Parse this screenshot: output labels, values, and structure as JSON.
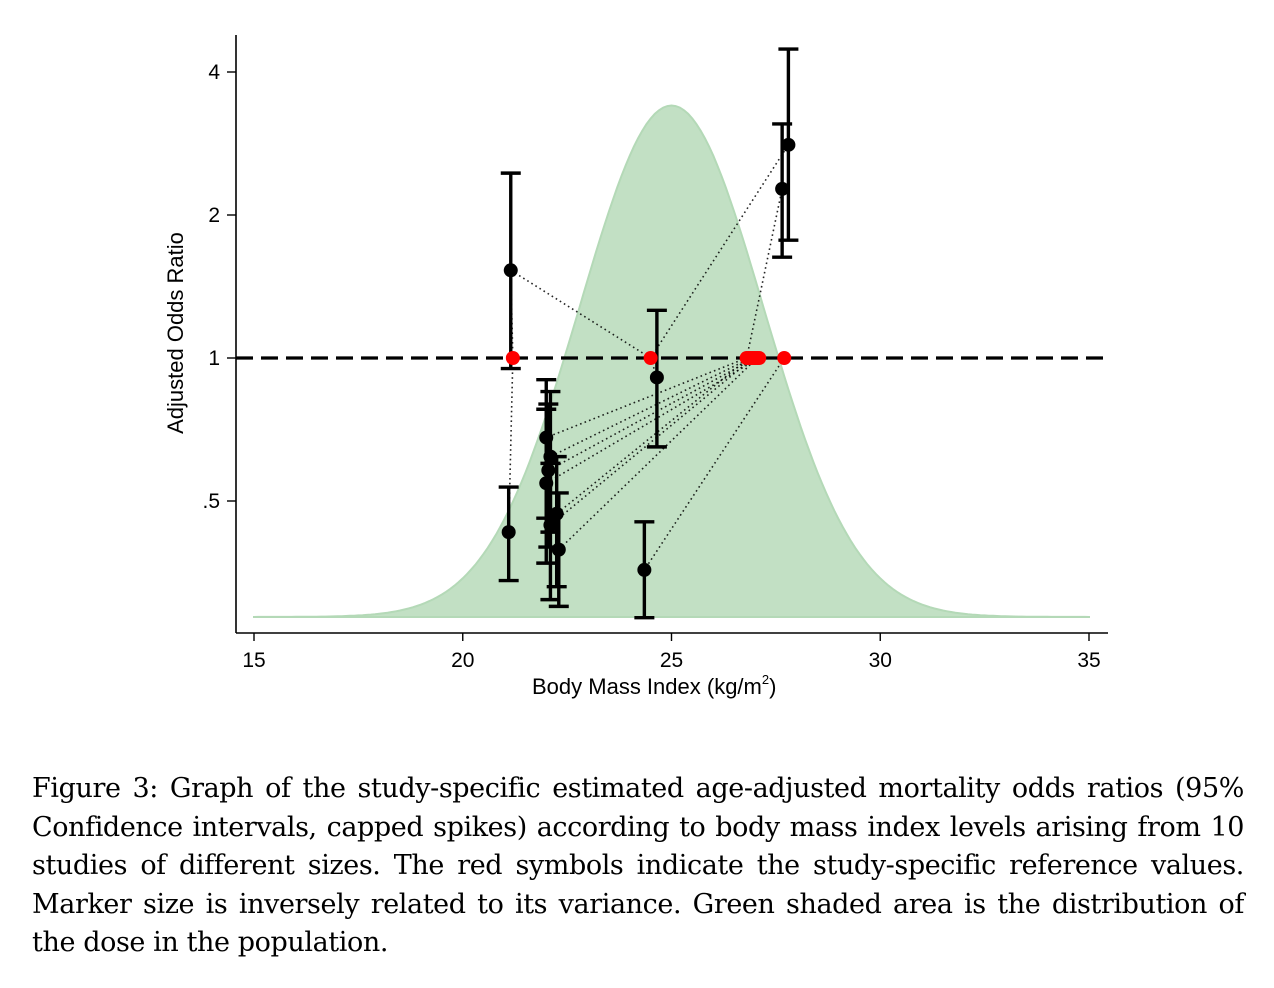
{
  "chart_data": {
    "type": "scatter",
    "title": "",
    "xlabel": "Body Mass Index (kg/m",
    "xlabel_superscript": "2",
    "xlabel_suffix": ")",
    "ylabel": "Adjusted Odds Ratio",
    "xlim": [
      15,
      35
    ],
    "ylim_log2": [
      0.27,
      4.6
    ],
    "y_scale": "log",
    "x_ticks": [
      15,
      20,
      25,
      30,
      35
    ],
    "x_tick_labels": [
      "15",
      "20",
      "25",
      "30",
      "35"
    ],
    "y_ticks": [
      4,
      2,
      1,
      0.5
    ],
    "y_tick_labels": [
      "4",
      "2",
      "1",
      ".5"
    ],
    "reference_line": {
      "y": 1,
      "style": "dashed",
      "color": "#000000"
    },
    "population_distribution": {
      "type": "normal",
      "mean": 25,
      "sd": 2.2,
      "x_range": [
        15,
        35
      ],
      "peak_or": 3.4,
      "base_or": 0.285,
      "color": "#c2e0c4"
    },
    "colors": {
      "point": "#000000",
      "reference": "#ff0000",
      "connector": "#000000"
    },
    "studies": [
      {
        "ref_x": 21.2,
        "points": [
          {
            "x": 21.15,
            "or": 1.53,
            "lo": 0.95,
            "hi": 2.45
          },
          {
            "x": 21.1,
            "or": 0.43,
            "lo": 0.34,
            "hi": 0.535
          }
        ]
      },
      {
        "ref_x": 24.5,
        "points": [
          {
            "x": 21.15,
            "or": 1.53,
            "lo": null,
            "hi": null
          },
          {
            "x": 24.65,
            "or": 0.91,
            "lo": 0.65,
            "hi": 1.26
          },
          {
            "x": 27.8,
            "or": 2.81,
            "lo": 1.77,
            "hi": 4.47
          }
        ]
      },
      {
        "ref_x": 26.8,
        "points": [
          {
            "x": 27.65,
            "or": 2.27,
            "lo": 1.63,
            "hi": 3.11
          },
          {
            "x": 22.0,
            "or": 0.68,
            "lo": 0.46,
            "hi": 0.9
          }
        ]
      },
      {
        "ref_x": 26.9,
        "points": [
          {
            "x": 22.1,
            "or": 0.62,
            "lo": 0.43,
            "hi": 0.85
          }
        ]
      },
      {
        "ref_x": 27.0,
        "points": [
          {
            "x": 22.05,
            "or": 0.58,
            "lo": 0.4,
            "hi": 0.8
          }
        ]
      },
      {
        "ref_x": 27.1,
        "points": [
          {
            "x": 22.0,
            "or": 0.545,
            "lo": 0.37,
            "hi": 0.78
          }
        ]
      },
      {
        "ref_x": 26.85,
        "points": [
          {
            "x": 22.25,
            "or": 0.47,
            "lo": 0.33,
            "hi": 0.62
          }
        ]
      },
      {
        "ref_x": 26.95,
        "points": [
          {
            "x": 22.1,
            "or": 0.445,
            "lo": 0.31,
            "hi": 0.6
          }
        ]
      },
      {
        "ref_x": 27.05,
        "points": [
          {
            "x": 22.3,
            "or": 0.395,
            "lo": 0.3,
            "hi": 0.52
          }
        ]
      },
      {
        "ref_x": 27.7,
        "points": [
          {
            "x": 24.35,
            "or": 0.358,
            "lo": 0.284,
            "hi": 0.452
          }
        ]
      }
    ],
    "point_sizes_note": "Marker size inversely related to variance"
  },
  "caption": "Figure 3: Graph of the study-specific estimated age-adjusted mortality odds ratios (95% Confidence intervals, capped spikes) according to body mass index levels arising from 10 studies of different sizes. The red symbols indicate the study-specific reference values. Marker size is inversely related to its variance. Green shaded area is the distribution of the dose in the population."
}
